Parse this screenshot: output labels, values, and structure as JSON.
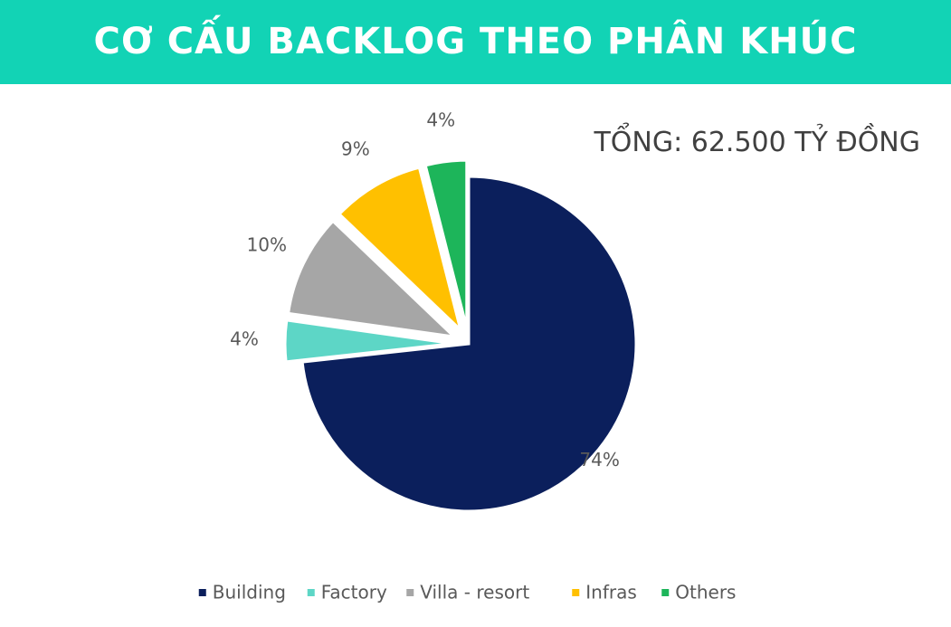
{
  "chart_data": {
    "type": "pie",
    "title": "CƠ CẤU BACKLOG THEO PHÂN KHÚC",
    "subtitle": "TỔNG: 62.500 TỶ ĐỒNG",
    "categories": [
      "Building",
      "Factory",
      "Villa - resort",
      "Infras",
      "Others"
    ],
    "values": [
      74,
      4,
      10,
      9,
      4
    ],
    "value_labels": [
      "74%",
      "4%",
      "10%",
      "9%",
      "4%"
    ],
    "colors": [
      "#0b1f5c",
      "#5dd6c6",
      "#a6a6a6",
      "#ffc000",
      "#1db55a"
    ],
    "legend": "bottom"
  }
}
